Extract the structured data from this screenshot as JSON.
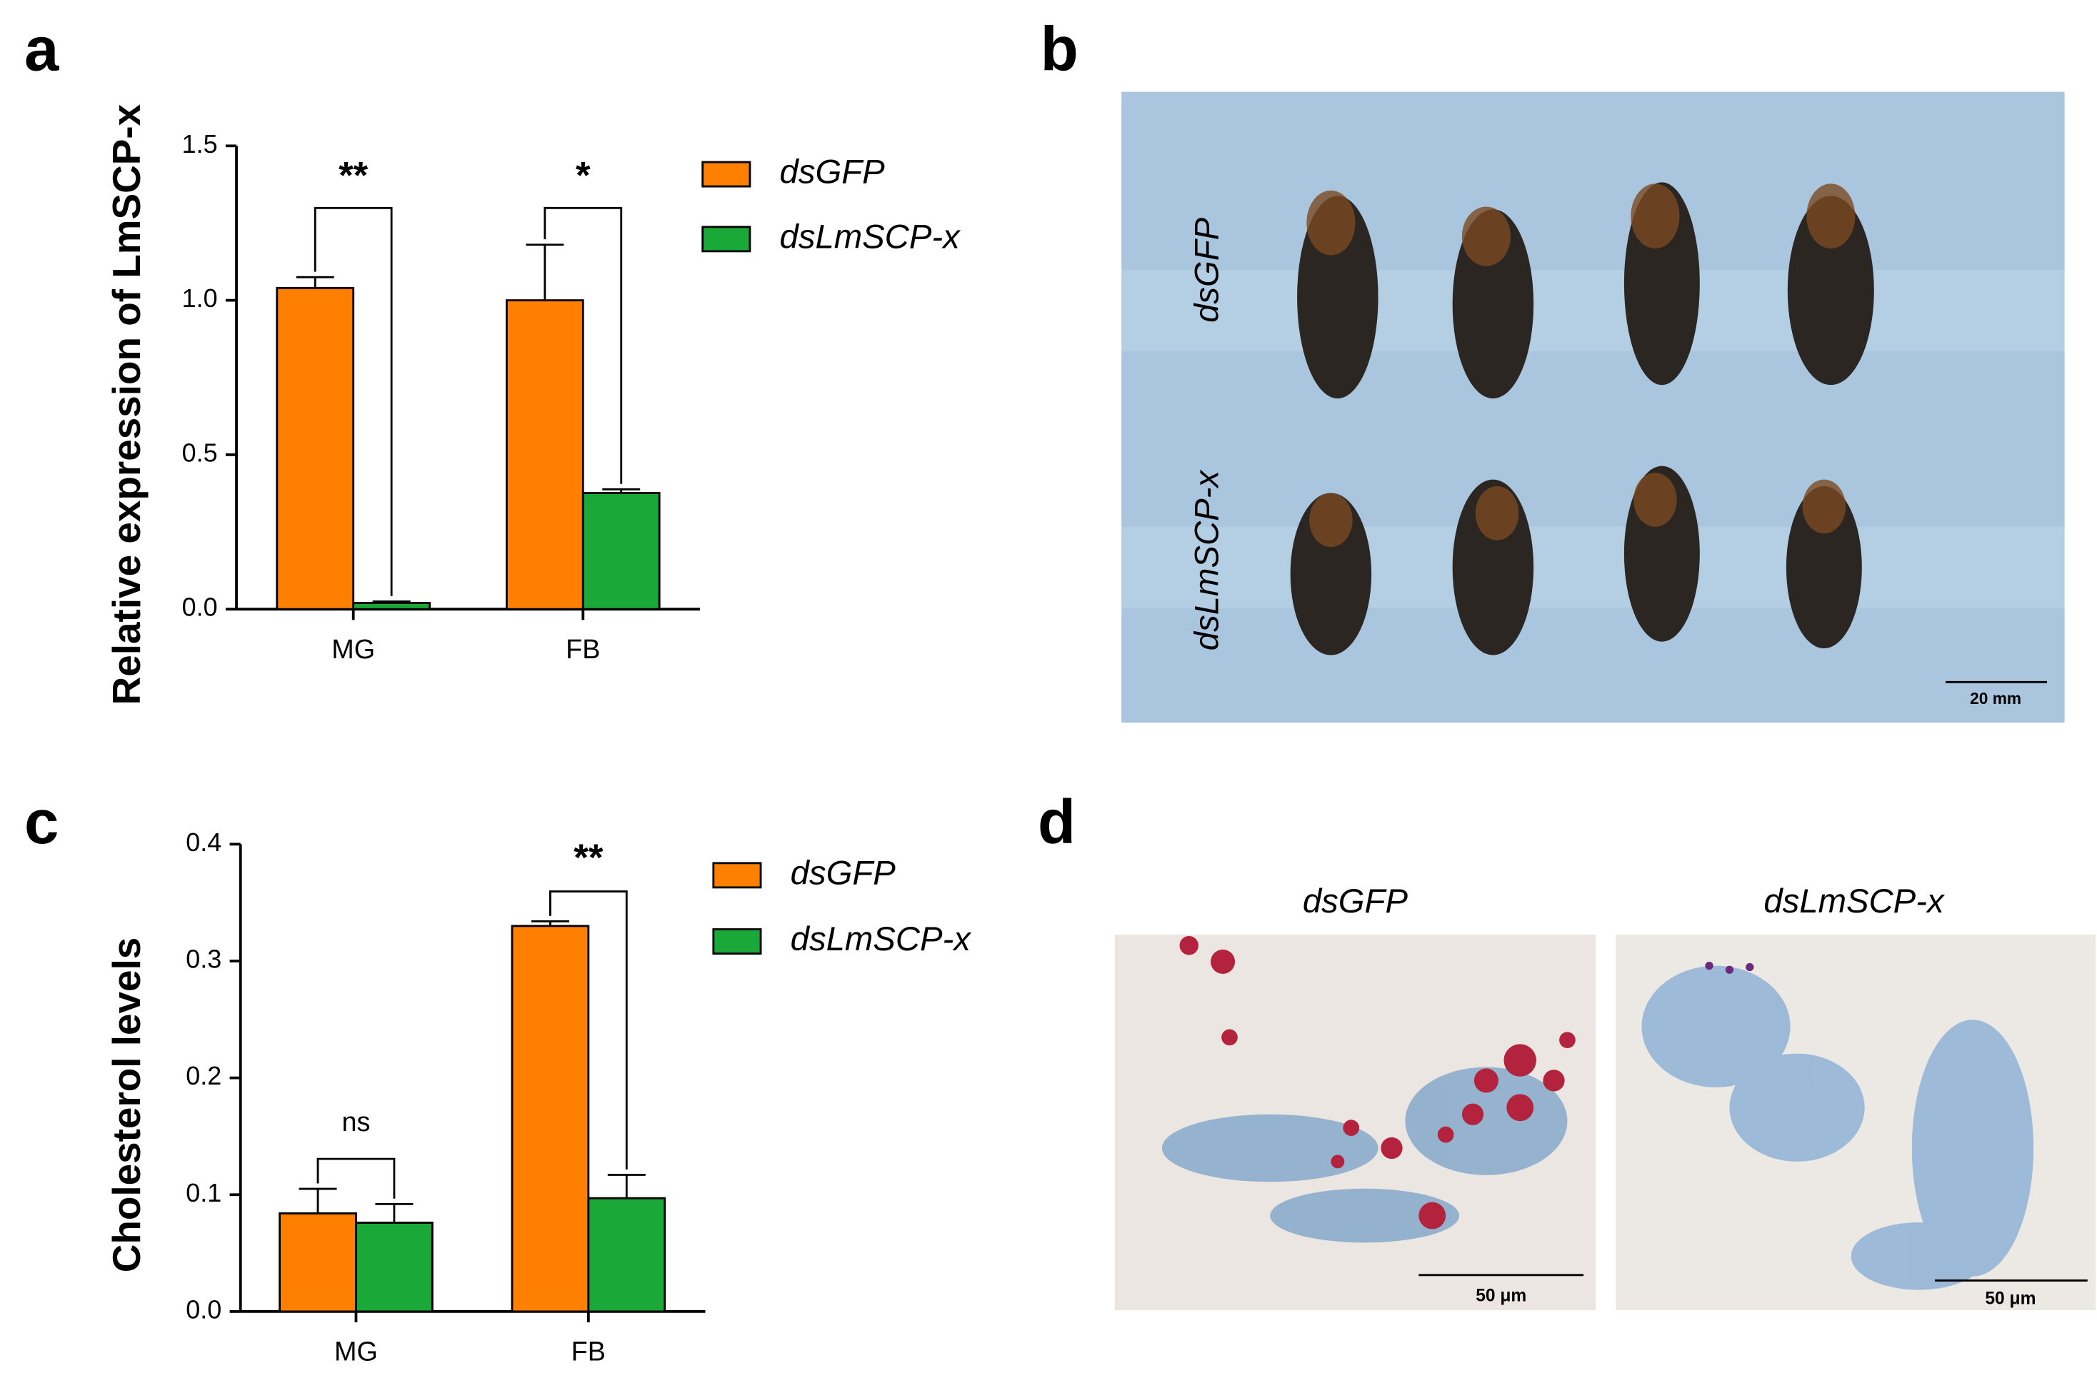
{
  "chart_data": [
    {
      "type": "bar",
      "label": "a",
      "ylabel": "Relative expression of LmSCP-x",
      "categories": [
        "MG",
        "FB"
      ],
      "series": [
        {
          "name": "dsGFP",
          "color": "#ff7f00",
          "values": [
            1.04,
            1.0
          ],
          "errors": [
            0.035,
            0.18
          ]
        },
        {
          "name": "dsLmSCP-x",
          "color": "#1aa839",
          "values": [
            0.02,
            0.376
          ],
          "errors": [
            0.005,
            0.012
          ]
        }
      ],
      "significance": [
        "**",
        "*"
      ],
      "ylim": [
        0,
        1.5
      ],
      "yticks": [
        {
          "value": 0,
          "label": "0.0"
        },
        {
          "value": 0.5,
          "label": "0.5"
        },
        {
          "value": 1,
          "label": "1.0"
        },
        {
          "value": 1.5,
          "label": "1.5"
        }
      ]
    },
    {
      "type": "bar",
      "label": "c",
      "ylabel": "Cholesterol levels",
      "categories": [
        "MG",
        "FB"
      ],
      "series": [
        {
          "name": "dsGFP",
          "color": "#ff7f00",
          "values": [
            0.084,
            0.33
          ],
          "errors": [
            0.021,
            0.004
          ]
        },
        {
          "name": "dsLmSCP-x",
          "color": "#1aa839",
          "values": [
            0.076,
            0.097
          ],
          "errors": [
            0.016,
            0.02
          ]
        }
      ],
      "significance": [
        "ns",
        "**"
      ],
      "ylim": [
        0,
        0.4
      ],
      "yticks": [
        {
          "value": 0,
          "label": "0.0"
        },
        {
          "value": 0.1,
          "label": "0.1"
        },
        {
          "value": 0.2,
          "label": "0.2"
        },
        {
          "value": 0.3,
          "label": "0.3"
        },
        {
          "value": 0.4,
          "label": "0.4"
        }
      ]
    }
  ],
  "panels": [
    {
      "label": "b",
      "row_labels": [
        "dsGFP",
        "dsLmSCP-x"
      ],
      "scale_bar": "20 mm"
    },
    {
      "label": "d",
      "titles": [
        "dsGFP",
        "dsLmSCP-x"
      ],
      "scale_bars": [
        "50 μm",
        "50 μm"
      ]
    }
  ]
}
